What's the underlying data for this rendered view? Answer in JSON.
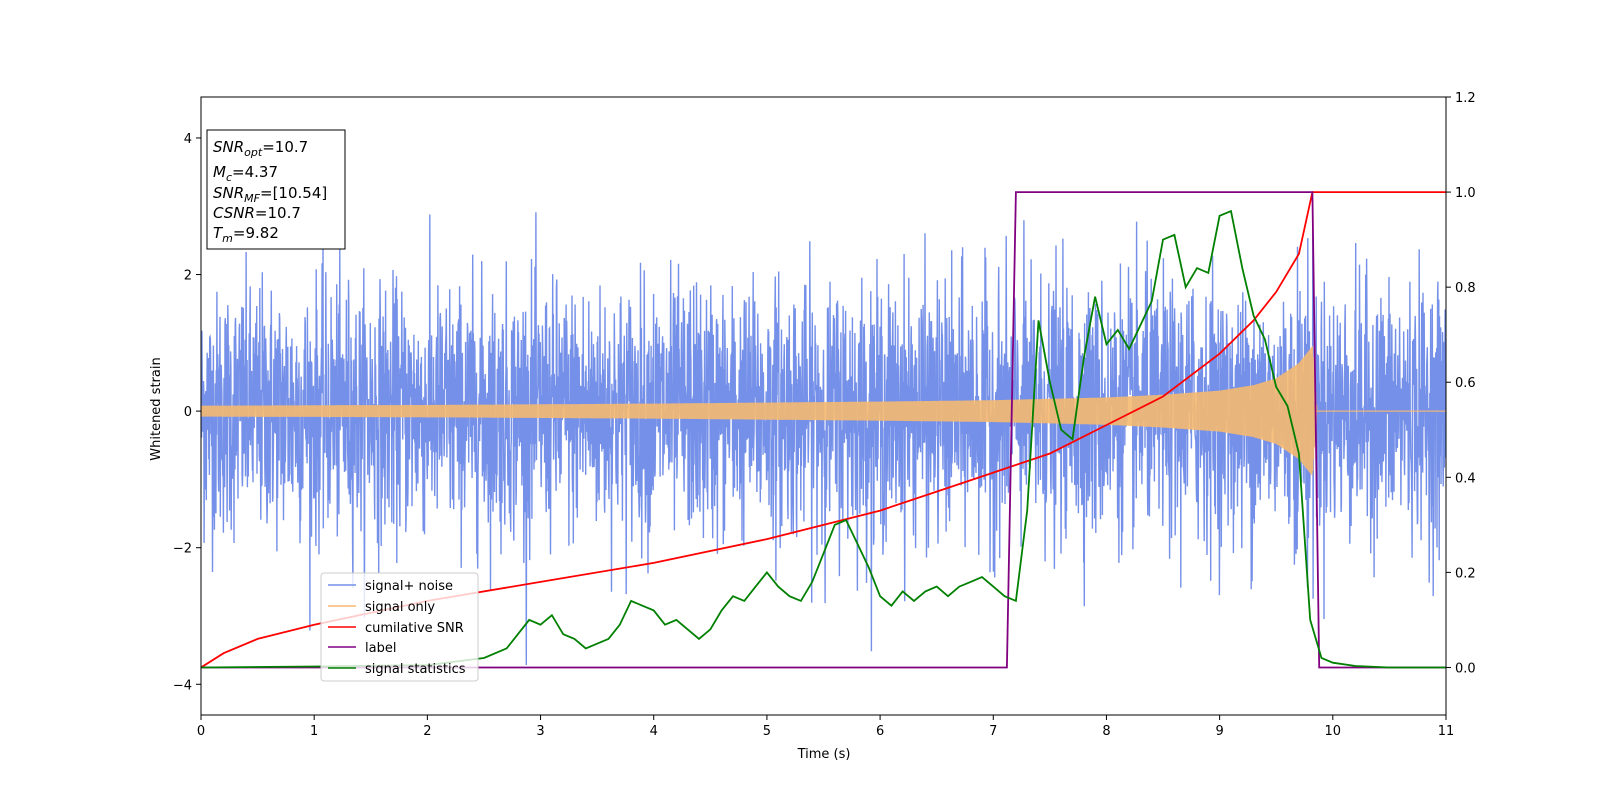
{
  "chart_data": {
    "type": "line",
    "xlabel": "Time (s)",
    "ylabel": "Whitened strain",
    "xlim": [
      0,
      11
    ],
    "ylim_left": [
      -4.45,
      4.6
    ],
    "ylim_right": [
      -0.1,
      1.2
    ],
    "xticks": [
      "0",
      "1",
      "2",
      "3",
      "4",
      "5",
      "6",
      "7",
      "8",
      "9",
      "10",
      "11"
    ],
    "yticks_left": [
      "−4",
      "−2",
      "0",
      "2",
      "4"
    ],
    "yticks_right": [
      "0.0",
      "0.2",
      "0.4",
      "0.6",
      "0.8",
      "1.0",
      "1.2"
    ],
    "grid": false,
    "legend_position": "lower-left",
    "stats_box": {
      "snr_opt": {
        "base": "SNR",
        "sub": "opt",
        "value": "=10.7"
      },
      "mc": {
        "base": "M",
        "sub": "c",
        "value": "=4.37"
      },
      "snr_mf": {
        "base": "SNR",
        "sub": "MF",
        "value": "=[10.54]"
      },
      "csnr": {
        "base": "CSNR",
        "sub": "",
        "value": "=10.7"
      },
      "tm": {
        "base": "T",
        "sub": "m",
        "value": "=9.82"
      }
    },
    "series": [
      {
        "name": "signal+ noise",
        "axis": "left",
        "color": "#7590e8",
        "description_values": {
          "noise_std": 0.9,
          "x_start": 0,
          "x_end": 11
        }
      },
      {
        "name": "signal only",
        "axis": "left",
        "color": "#f5b971",
        "envelope": {
          "x": [
            0,
            2,
            4,
            6,
            7,
            8,
            8.5,
            9,
            9.3,
            9.5,
            9.7,
            9.82,
            9.86,
            11
          ],
          "amp": [
            0.08,
            0.09,
            0.11,
            0.14,
            0.16,
            0.2,
            0.24,
            0.3,
            0.38,
            0.48,
            0.7,
            0.95,
            0.0,
            0.0
          ]
        }
      },
      {
        "name": "cumilative SNR",
        "axis": "right",
        "color": "#ff0000",
        "x": [
          0,
          0.2,
          0.5,
          1,
          2,
          3,
          4,
          5,
          6,
          6.5,
          7,
          7.5,
          8,
          8.5,
          9,
          9.3,
          9.5,
          9.7,
          9.82,
          11
        ],
        "values": [
          0.0,
          0.03,
          0.06,
          0.09,
          0.14,
          0.18,
          0.22,
          0.27,
          0.33,
          0.37,
          0.41,
          0.45,
          0.51,
          0.57,
          0.66,
          0.73,
          0.79,
          0.87,
          1.0,
          1.0
        ]
      },
      {
        "name": "label",
        "axis": "right",
        "color": "#800080",
        "x": [
          0,
          7.12,
          7.2,
          9.82,
          9.88,
          11
        ],
        "values": [
          0,
          0,
          1,
          1,
          0,
          0
        ]
      },
      {
        "name": "signal statistics",
        "axis": "right",
        "color": "#008000",
        "x": [
          0,
          1,
          2,
          2.5,
          2.7,
          2.8,
          2.9,
          3.0,
          3.1,
          3.2,
          3.3,
          3.4,
          3.5,
          3.6,
          3.7,
          3.8,
          3.9,
          4.0,
          4.1,
          4.2,
          4.3,
          4.4,
          4.5,
          4.6,
          4.7,
          4.8,
          4.9,
          5.0,
          5.1,
          5.2,
          5.3,
          5.4,
          5.5,
          5.6,
          5.7,
          5.8,
          5.9,
          6.0,
          6.1,
          6.2,
          6.3,
          6.4,
          6.5,
          6.6,
          6.7,
          6.8,
          6.9,
          7.0,
          7.1,
          7.2,
          7.3,
          7.4,
          7.5,
          7.6,
          7.7,
          7.8,
          7.9,
          8.0,
          8.1,
          8.2,
          8.3,
          8.4,
          8.5,
          8.6,
          8.7,
          8.8,
          8.9,
          9.0,
          9.1,
          9.2,
          9.3,
          9.4,
          9.5,
          9.6,
          9.7,
          9.8,
          9.9,
          10.0,
          10.2,
          10.5,
          11
        ],
        "values": [
          0.0,
          0.002,
          0.005,
          0.02,
          0.04,
          0.07,
          0.1,
          0.09,
          0.11,
          0.07,
          0.06,
          0.04,
          0.05,
          0.06,
          0.09,
          0.14,
          0.13,
          0.12,
          0.09,
          0.1,
          0.08,
          0.06,
          0.08,
          0.12,
          0.15,
          0.14,
          0.17,
          0.2,
          0.17,
          0.15,
          0.14,
          0.18,
          0.24,
          0.3,
          0.31,
          0.26,
          0.21,
          0.15,
          0.13,
          0.16,
          0.14,
          0.16,
          0.17,
          0.15,
          0.17,
          0.18,
          0.19,
          0.17,
          0.15,
          0.14,
          0.33,
          0.73,
          0.6,
          0.5,
          0.48,
          0.65,
          0.78,
          0.68,
          0.71,
          0.67,
          0.72,
          0.77,
          0.9,
          0.91,
          0.8,
          0.84,
          0.83,
          0.95,
          0.96,
          0.84,
          0.74,
          0.69,
          0.59,
          0.55,
          0.45,
          0.1,
          0.02,
          0.01,
          0.003,
          0.0,
          0.0
        ]
      }
    ]
  }
}
